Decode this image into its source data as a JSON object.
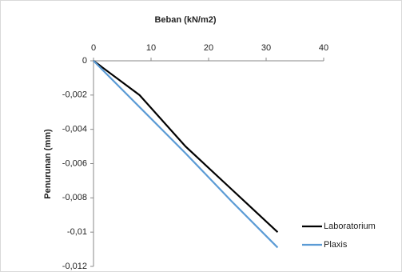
{
  "chart_data": {
    "type": "line",
    "title": "Beban (kN/m2)",
    "y_label": "Penurunan (mm)",
    "x": [
      0,
      8,
      16,
      24,
      32
    ],
    "series": [
      {
        "name": "Laboratorium",
        "color": "#000000",
        "values": [
          0,
          -0.002,
          -0.005,
          -0.0075,
          -0.01
        ]
      },
      {
        "name": "Plaxis",
        "color": "#5b9bd5",
        "values": [
          0,
          -0.0027,
          -0.0054,
          -0.0082,
          -0.0109
        ]
      }
    ],
    "xlim": [
      0,
      40
    ],
    "xticks": [
      0,
      10,
      20,
      30,
      40
    ],
    "ylim": [
      -0.012,
      0
    ],
    "yticks": [
      {
        "value": -0.012,
        "label": "-0,012"
      },
      {
        "value": -0.01,
        "label": "-0,01"
      },
      {
        "value": -0.008,
        "label": "-0,008"
      },
      {
        "value": -0.006,
        "label": "-0,006"
      },
      {
        "value": -0.004,
        "label": "-0,004"
      },
      {
        "value": -0.002,
        "label": "-0,002"
      },
      0
    ],
    "grid": false,
    "legend": "right"
  }
}
